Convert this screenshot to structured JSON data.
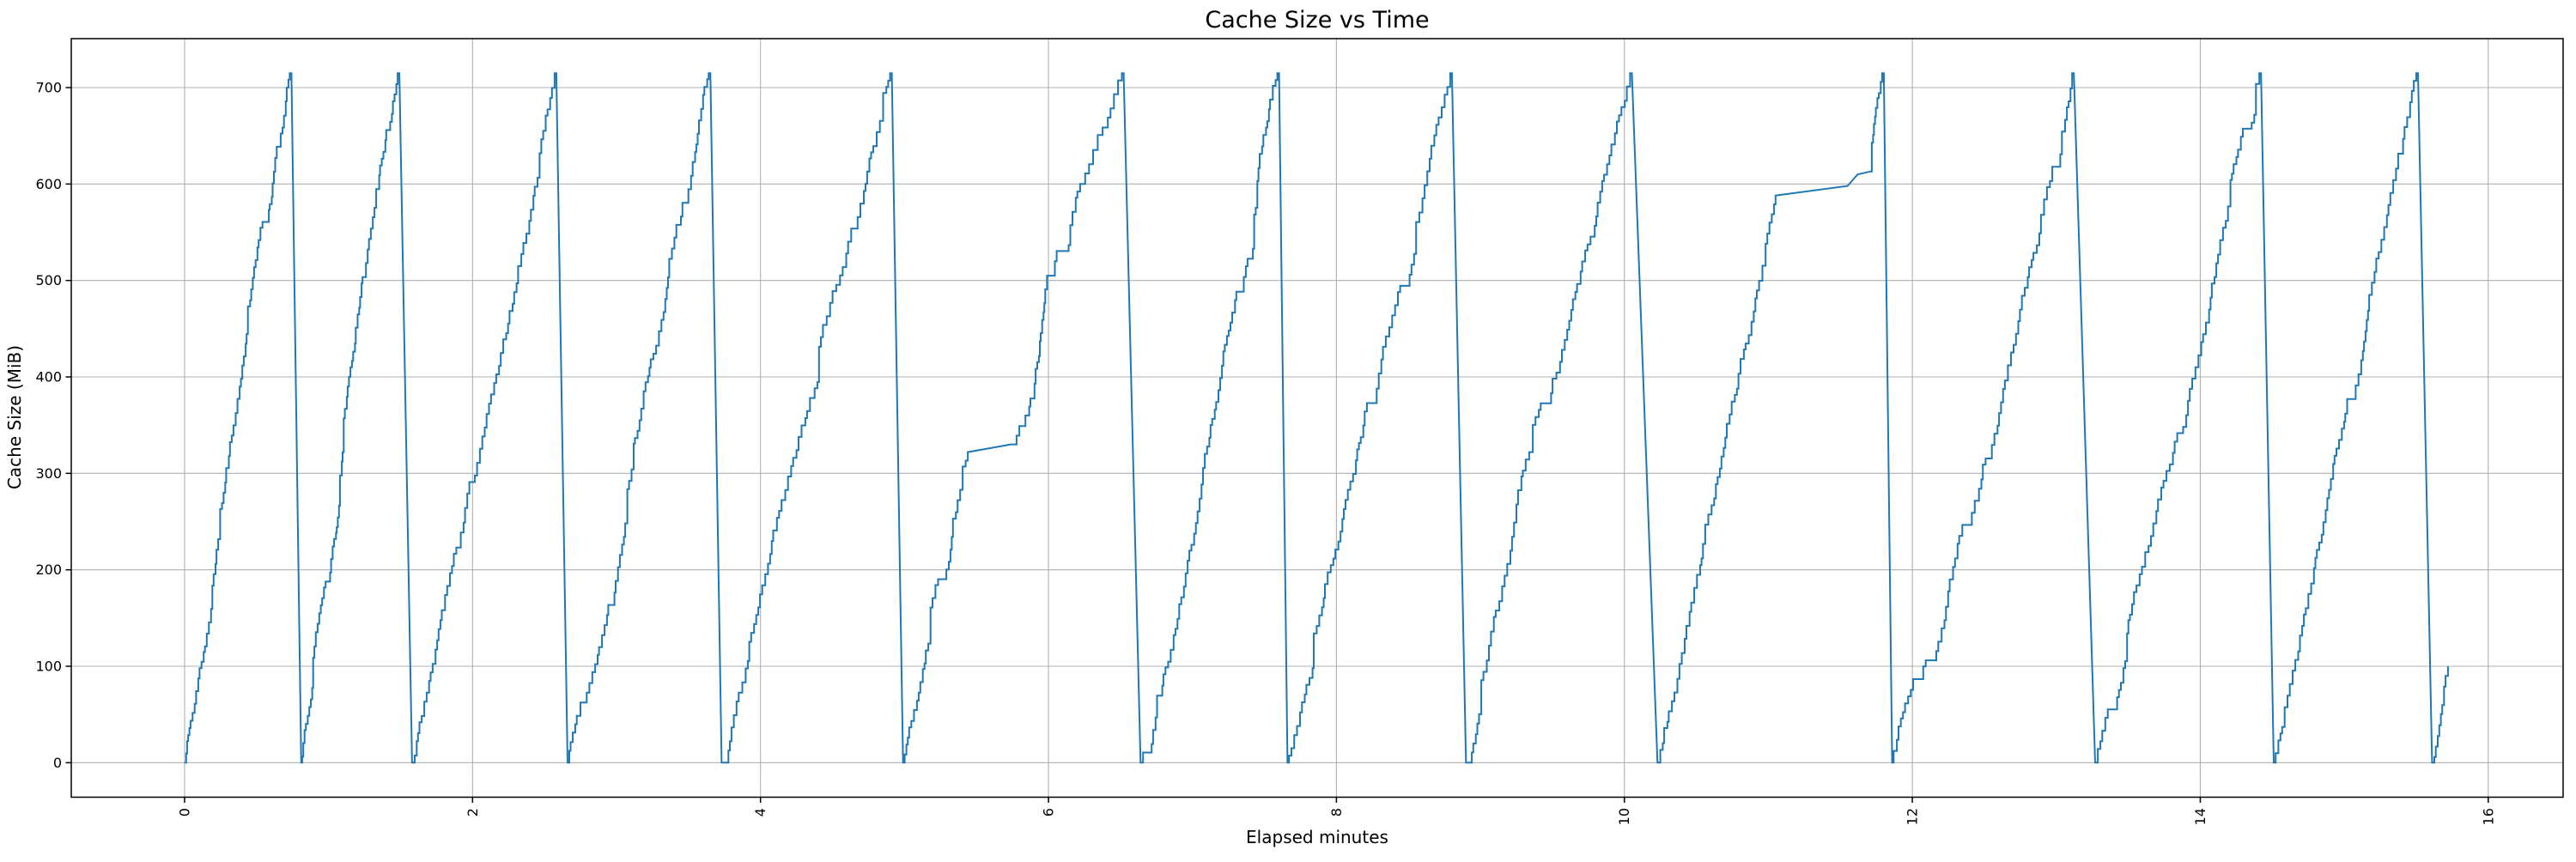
{
  "figure": {
    "background": "#ffffff"
  },
  "chart_data": {
    "type": "line",
    "title": "Cache Size vs Time",
    "xlabel": "Elapsed minutes",
    "ylabel": "Cache Size (MiB)",
    "xticks": [
      0,
      2,
      4,
      6,
      8,
      10,
      12,
      14,
      16
    ],
    "yticks": [
      0,
      100,
      200,
      300,
      400,
      500,
      600,
      700
    ],
    "xlim": [
      -0.787,
      16.52
    ],
    "ylim": [
      -35.75,
      750.75
    ],
    "grid": true,
    "legend": false,
    "x_tick_rotation": 90,
    "line_color": "#1f77b4",
    "grid_color": "#b0b0b0",
    "spine_color": "#000000",
    "peak_value": 715,
    "series": [
      {
        "name": "cache_size_mib",
        "style": "staircase-sawtooth",
        "step_mib": 11.5,
        "cycles": [
          {
            "ramp": [
              [
                0.0,
                0
              ],
              [
                0.73,
                715
              ]
            ],
            "drop_end": 0.81
          },
          {
            "ramp": [
              [
                0.81,
                0
              ],
              [
                1.48,
                715
              ]
            ],
            "drop_end": 1.58
          },
          {
            "ramp": [
              [
                1.58,
                0
              ],
              [
                2.57,
                715
              ]
            ],
            "drop_end": 2.66
          },
          {
            "ramp": [
              [
                2.66,
                0
              ],
              [
                3.64,
                715
              ]
            ],
            "drop_end": 3.73
          },
          {
            "ramp": [
              [
                3.73,
                0
              ],
              [
                4.9,
                715
              ]
            ],
            "drop_end": 4.99
          },
          {
            "ramp": [
              [
                4.99,
                0
              ],
              [
                5.44,
                322
              ],
              [
                5.74,
                330
              ],
              [
                5.84,
                360
              ],
              [
                5.99,
                505
              ],
              [
                6.22,
                600
              ],
              [
                6.51,
                715
              ]
            ],
            "drop_end": 6.64
          },
          {
            "ramp": [
              [
                6.64,
                0
              ],
              [
                7.59,
                715
              ]
            ],
            "drop_end": 7.66
          },
          {
            "ramp": [
              [
                7.66,
                0
              ],
              [
                8.79,
                715
              ]
            ],
            "drop_end": 8.9
          },
          {
            "ramp": [
              [
                8.9,
                0
              ],
              [
                10.04,
                715
              ]
            ],
            "drop_end": 10.23
          },
          {
            "ramp": [
              [
                10.23,
                0
              ],
              [
                11.05,
                588
              ],
              [
                11.55,
                598
              ],
              [
                11.62,
                610
              ],
              [
                11.71,
                613
              ],
              [
                11.79,
                715
              ]
            ],
            "drop_end": 11.86
          },
          {
            "ramp": [
              [
                11.86,
                0
              ],
              [
                13.11,
                715
              ]
            ],
            "drop_end": 13.27
          },
          {
            "ramp": [
              [
                13.27,
                0
              ],
              [
                14.41,
                715
              ]
            ],
            "drop_end": 14.51
          },
          {
            "ramp": [
              [
                14.51,
                0
              ],
              [
                15.5,
                715
              ]
            ],
            "drop_end": 15.61
          },
          {
            "ramp": [
              [
                15.61,
                0
              ],
              [
                15.72,
                100
              ]
            ],
            "drop_end": null
          }
        ]
      }
    ]
  }
}
